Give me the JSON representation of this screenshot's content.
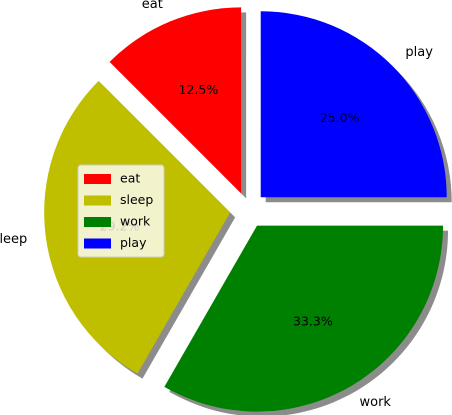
{
  "chart_data": {
    "type": "pie",
    "title": "",
    "categories": [
      "eat",
      "sleep",
      "work",
      "play"
    ],
    "values": [
      12.5,
      29.2,
      33.3,
      25.0
    ],
    "percent_labels": [
      "12.5%",
      "29.2%",
      "33.3%",
      "25.0%"
    ],
    "colors": [
      "#ff0000",
      "#bfbf00",
      "#008000",
      "#0000ff"
    ],
    "explode": true,
    "shadow": true,
    "start_angle_deg": 90,
    "direction": "counterclockwise",
    "legend": {
      "placement": "center-left",
      "entries": [
        "eat",
        "sleep",
        "work",
        "play"
      ]
    }
  }
}
